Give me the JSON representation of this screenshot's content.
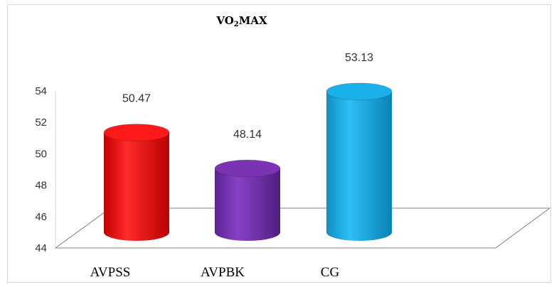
{
  "chart_data": {
    "type": "bar",
    "title": "VO2 MAX",
    "title_parts": {
      "pre": "VO",
      "sub": "2",
      "post": "MAX"
    },
    "categories": [
      "AVPSS",
      "AVPBK",
      "CG"
    ],
    "values": [
      50.47,
      48.14,
      53.13
    ],
    "data_labels": [
      "50.47",
      "48.14",
      "53.13"
    ],
    "colors": [
      "#ff1a1a",
      "#7a33b3",
      "#1ab0ea"
    ],
    "ylim": [
      44,
      54
    ],
    "yticks": [
      44,
      46,
      48,
      50,
      52,
      54
    ],
    "xlabel": "",
    "ylabel": "",
    "grid": false,
    "legend": "none",
    "style": "3d-cylinder"
  }
}
